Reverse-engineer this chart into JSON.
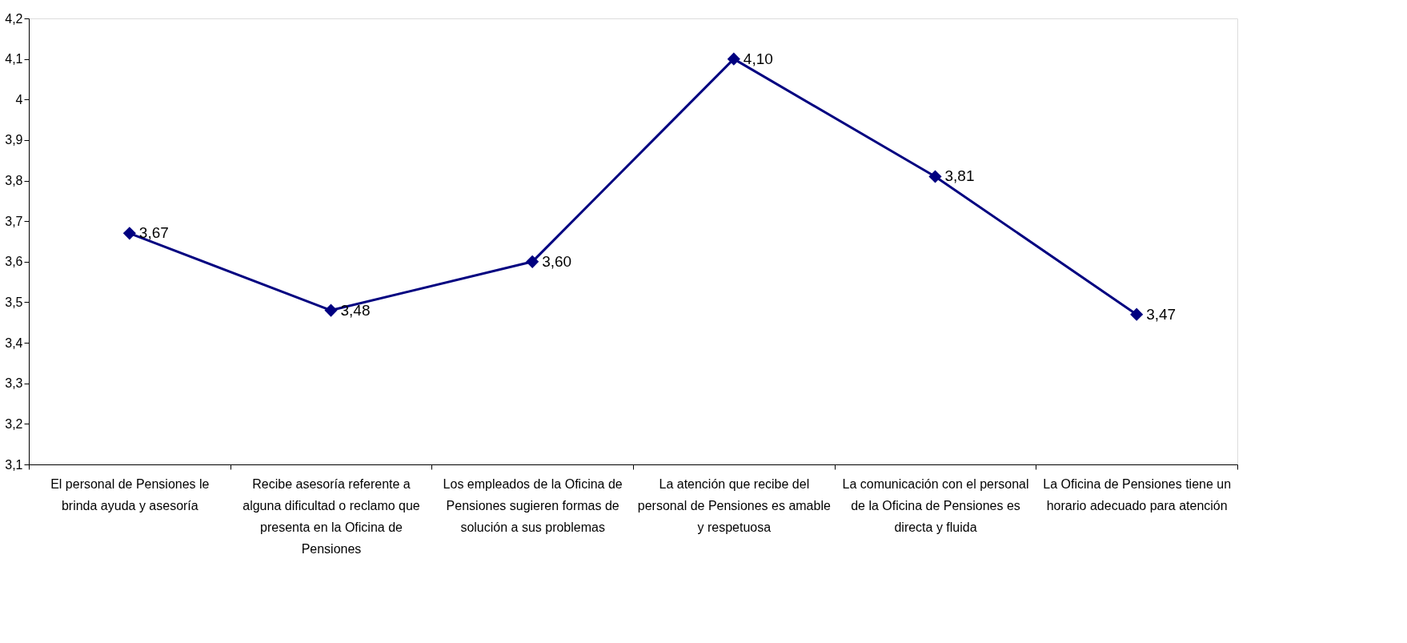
{
  "chart_data": {
    "type": "line",
    "categories": [
      "El personal de Pensiones le brinda ayuda y asesoría",
      "Recibe asesoría referente a alguna dificultad o reclamo que presenta en la Oficina de Pensiones",
      "Los empleados  de la  Oficina de Pensiones  sugieren formas de solución a sus problemas",
      "La atención que recibe del personal de Pensiones es amable y respetuosa",
      "La comunicación con el personal de la Oficina de Pensiones es directa y fluida",
      "La Oficina de Pensiones tiene un horario adecuado para atención"
    ],
    "series": [
      {
        "color": "#000080",
        "values": [
          3.67,
          3.48,
          3.6,
          4.1,
          3.81,
          3.47
        ],
        "value_labels": [
          "3,67",
          "3,48",
          "3,60",
          "4,10",
          "3,81",
          "3,47"
        ]
      }
    ],
    "ylim": [
      3.1,
      4.2
    ],
    "yticks": [
      {
        "value": 3.1,
        "label": "3,1"
      },
      {
        "value": 3.2,
        "label": "3,2"
      },
      {
        "value": 3.3,
        "label": "3,3"
      },
      {
        "value": 3.4,
        "label": "3,4"
      },
      {
        "value": 3.5,
        "label": "3,5"
      },
      {
        "value": 3.6,
        "label": "3,6"
      },
      {
        "value": 3.7,
        "label": "3,7"
      },
      {
        "value": 3.8,
        "label": "3,8"
      },
      {
        "value": 3.9,
        "label": "3,9"
      },
      4,
      {
        "value": 4.1,
        "label": "4,1"
      },
      {
        "value": 4.2,
        "label": "4,2"
      }
    ],
    "marker": "diamond",
    "line_style": "solid",
    "grid": false
  }
}
